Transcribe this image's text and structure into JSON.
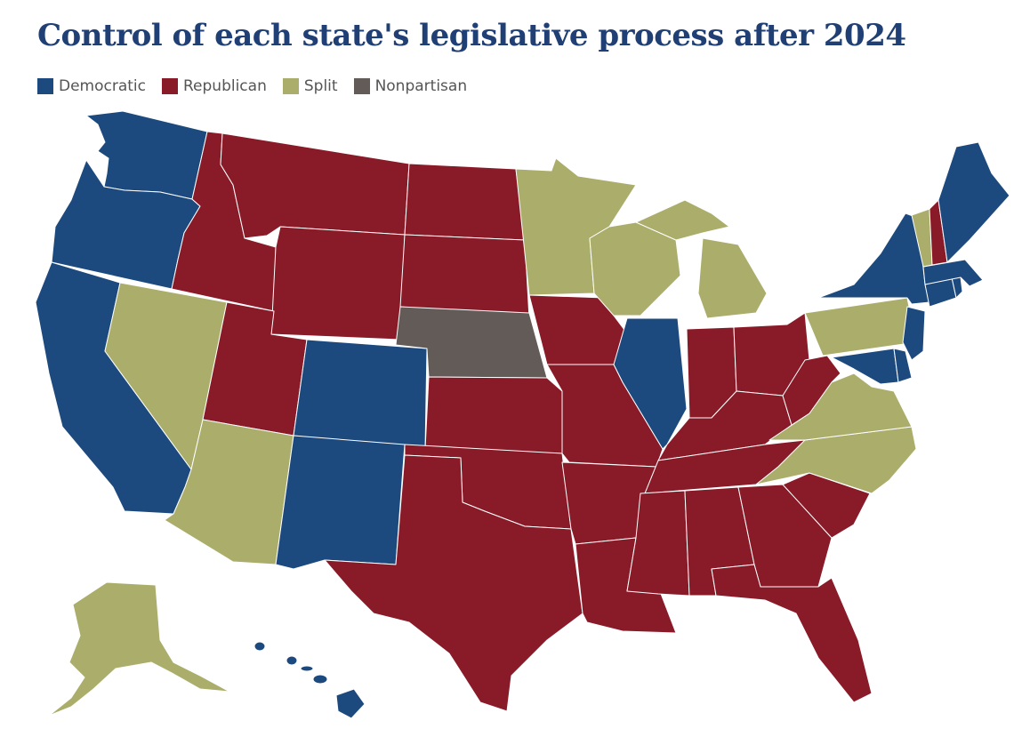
{
  "title": "Control of each state's legislative process after 2024",
  "colors": {
    "democratic": "#1d4a7e",
    "republican": "#891a28",
    "split": "#abad6b",
    "nonpartisan": "#625b57"
  },
  "legend": [
    {
      "key": "democratic",
      "label": "Democratic"
    },
    {
      "key": "republican",
      "label": "Republican"
    },
    {
      "key": "split",
      "label": "Split"
    },
    {
      "key": "nonpartisan",
      "label": "Nonpartisan"
    }
  ],
  "states": {
    "WA": "democratic",
    "OR": "democratic",
    "CA": "democratic",
    "NV": "split",
    "ID": "republican",
    "MT": "republican",
    "WY": "republican",
    "UT": "republican",
    "AZ": "split",
    "CO": "democratic",
    "NM": "democratic",
    "ND": "republican",
    "SD": "republican",
    "NE": "nonpartisan",
    "KS": "republican",
    "OK": "republican",
    "TX": "republican",
    "MN": "split",
    "IA": "republican",
    "MO": "republican",
    "AR": "republican",
    "LA": "republican",
    "WI": "split",
    "IL": "democratic",
    "MI": "split",
    "IN": "republican",
    "OH": "republican",
    "KY": "republican",
    "TN": "republican",
    "MS": "republican",
    "AL": "republican",
    "GA": "republican",
    "FL": "republican",
    "SC": "republican",
    "NC": "split",
    "VA": "split",
    "WV": "republican",
    "MD": "democratic",
    "DE": "democratic",
    "PA": "split",
    "NJ": "democratic",
    "NY": "democratic",
    "CT": "democratic",
    "RI": "democratic",
    "MA": "democratic",
    "VT": "split",
    "NH": "republican",
    "ME": "democratic",
    "AK": "split",
    "HI": "democratic"
  }
}
